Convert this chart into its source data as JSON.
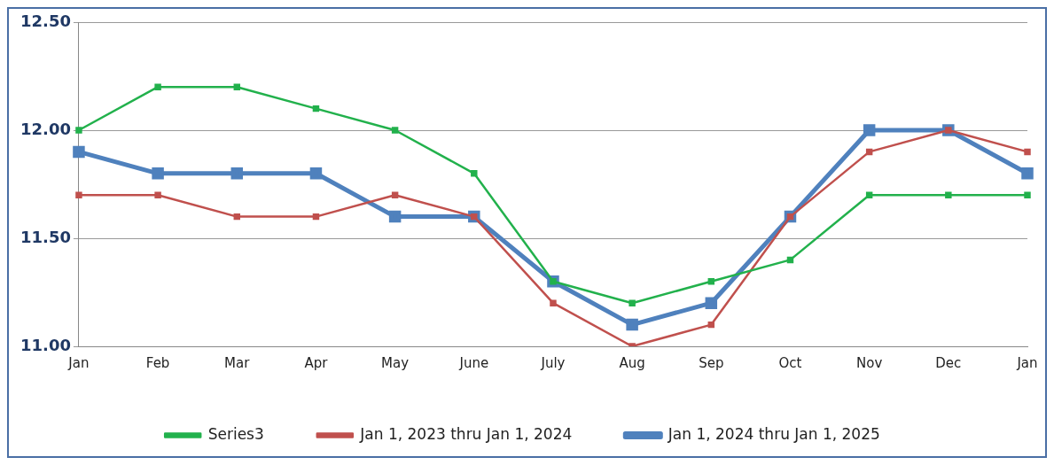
{
  "chart_data": {
    "type": "line",
    "categories": [
      "Jan",
      "Feb",
      "Mar",
      "Apr",
      "May",
      "June",
      "July",
      "Aug",
      "Sep",
      "Oct",
      "Nov",
      "Dec",
      "Jan"
    ],
    "series": [
      {
        "name": "Jan 1, 2024 thru Jan 1, 2025",
        "color": "#4f81bd",
        "values": [
          11.9,
          11.8,
          11.8,
          11.8,
          11.6,
          11.6,
          11.3,
          11.1,
          11.2,
          11.6,
          12.0,
          12.0,
          11.8
        ]
      },
      {
        "name": "Jan 1, 2023 thru Jan 1, 2024",
        "color": "#c0504d",
        "values": [
          11.7,
          11.7,
          11.6,
          11.6,
          11.7,
          11.6,
          11.2,
          11.0,
          11.1,
          11.6,
          11.9,
          12.0,
          11.9
        ]
      },
      {
        "name": "Series3",
        "color": "#22b14c",
        "values": [
          12.0,
          12.2,
          12.2,
          12.1,
          12.0,
          11.8,
          11.3,
          11.2,
          11.3,
          11.4,
          11.7,
          11.7,
          11.7
        ]
      }
    ],
    "ylim": [
      11,
      12.5
    ],
    "yticks": [
      {
        "value": 11,
        "label": "11.00"
      },
      {
        "value": 11.5,
        "label": "11.50"
      },
      {
        "value": 12,
        "label": "12.00"
      },
      {
        "value": 12.5,
        "label": "12.50"
      }
    ],
    "grid": "y",
    "legend": "bottom",
    "marker": "square",
    "line_style": "solid"
  }
}
